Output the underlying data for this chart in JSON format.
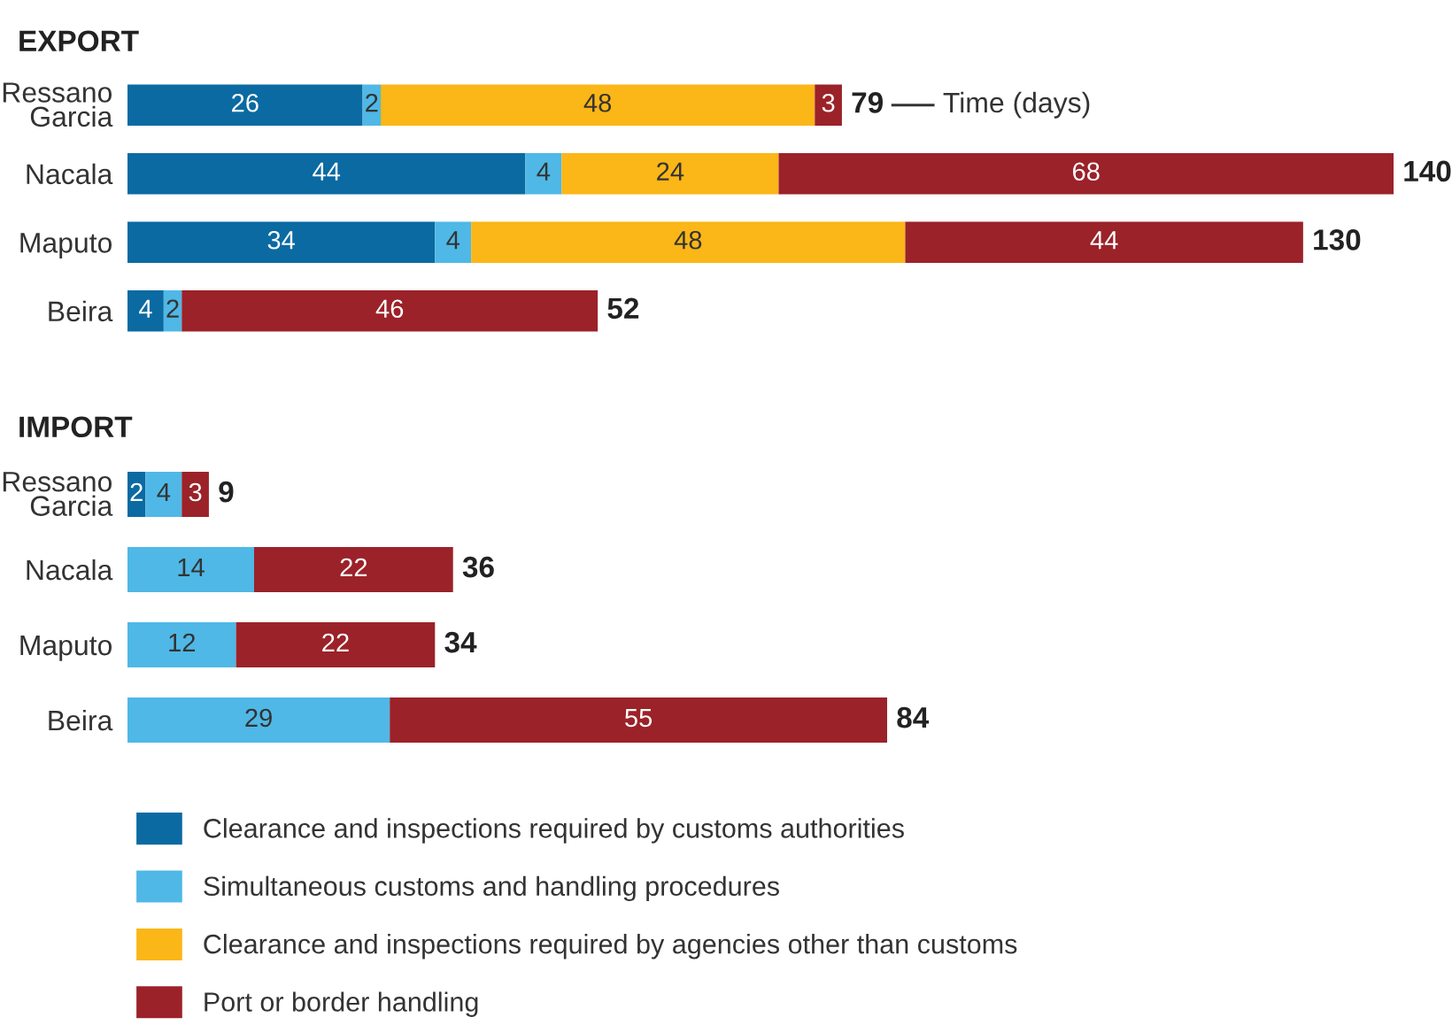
{
  "chart_data": [
    {
      "type": "bar",
      "orientation": "horizontal",
      "stacked": true,
      "title": "EXPORT",
      "categories": [
        "Ressano\nGarcia",
        "Nacala",
        "Maputo",
        "Beira"
      ],
      "data_labels": true,
      "totals": [
        "79",
        "140",
        "130",
        "52"
      ],
      "annotations": [
        "Time (days)"
      ],
      "series": [
        {
          "color": "#0b6aa2",
          "values": [
            26,
            44,
            34,
            4
          ]
        },
        {
          "color": "#4fb8e6",
          "values": [
            2,
            4,
            4,
            2
          ]
        },
        {
          "color": "#fbb617",
          "values": [
            48,
            24,
            48,
            null
          ]
        },
        {
          "color": "#9b2229",
          "values": [
            3,
            68,
            44,
            46
          ]
        }
      ]
    },
    {
      "type": "bar",
      "orientation": "horizontal",
      "stacked": true,
      "title": "IMPORT",
      "categories": [
        "Ressano\nGarcia",
        "Nacala",
        "Maputo",
        "Beira"
      ],
      "data_labels": true,
      "totals": [
        "9",
        "36",
        "34",
        "84"
      ],
      "legend": "bottom",
      "series": [
        {
          "name": "Clearance and inspections required by customs authorities",
          "color": "#0b6aa2",
          "values": [
            2,
            null,
            null,
            null
          ]
        },
        {
          "name": "Simultaneous customs and handling procedures",
          "color": "#4fb8e6",
          "values": [
            4,
            14,
            12,
            29
          ]
        },
        {
          "name": "Clearance and inspections required by agencies other than customs",
          "color": "#fbb617",
          "values": [
            null,
            null,
            null,
            null
          ]
        },
        {
          "name": "Port or border handling",
          "color": "#9b2229",
          "values": [
            3,
            22,
            22,
            55
          ]
        }
      ]
    }
  ]
}
